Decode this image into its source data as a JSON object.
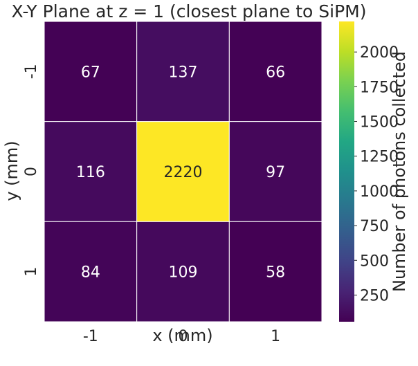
{
  "chart_data": {
    "type": "heatmap",
    "title": "X-Y Plane at z = 1 (closest plane to SiPM)",
    "xlabel": "x (mm)",
    "ylabel": "y (mm)",
    "x_categories": [
      "-1",
      "0",
      "1"
    ],
    "y_categories": [
      "-1",
      "0",
      "1"
    ],
    "values": [
      [
        67,
        137,
        66
      ],
      [
        116,
        2220,
        97
      ],
      [
        84,
        109,
        58
      ]
    ],
    "colorbar": {
      "label": "Number of photons collected",
      "min": 58,
      "max": 2220,
      "ticks": [
        250,
        500,
        750,
        1000,
        1250,
        1500,
        1750,
        2000
      ],
      "colormap": "viridis"
    },
    "annotations": true,
    "cell_border_color": "#ffffff"
  }
}
